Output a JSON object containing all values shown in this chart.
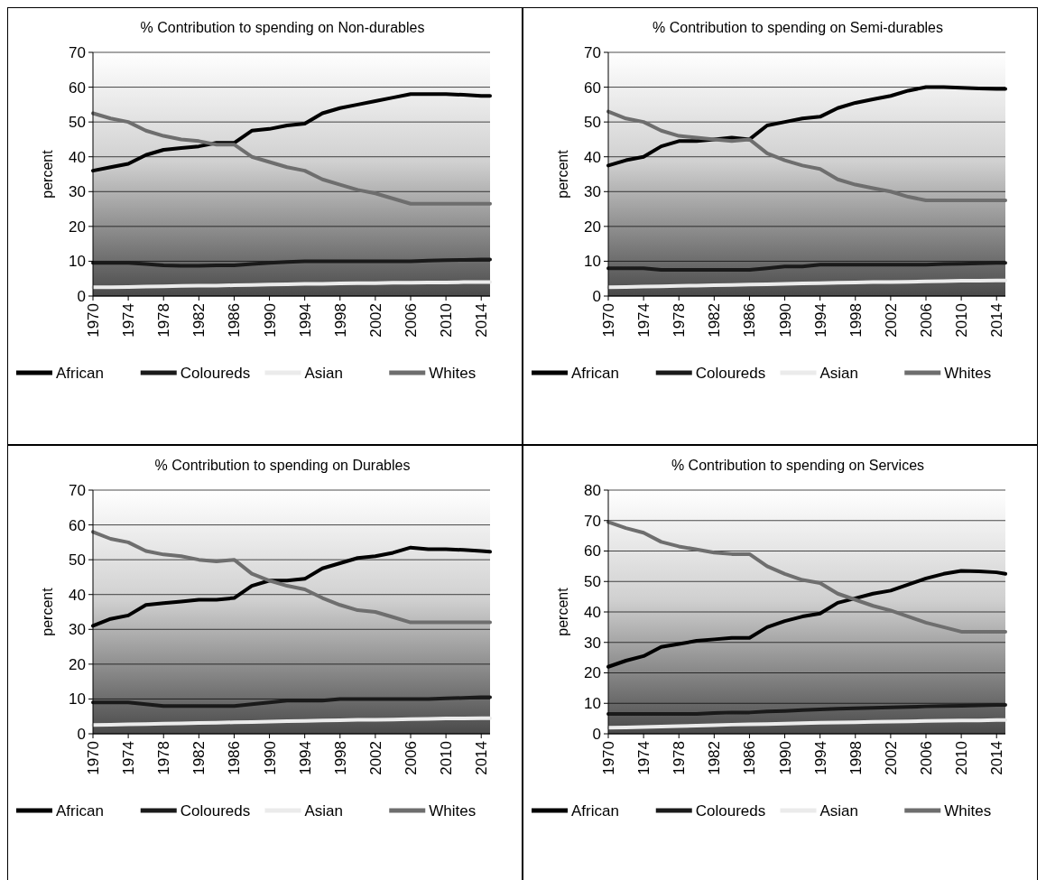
{
  "chart_data": [
    {
      "type": "line",
      "title": "% Contribution to spending on Non-durables",
      "ylabel": "percent",
      "x": [
        1970,
        1972,
        1974,
        1976,
        1978,
        1980,
        1982,
        1984,
        1986,
        1988,
        1990,
        1992,
        1994,
        1996,
        1998,
        2000,
        2002,
        2004,
        2006,
        2008,
        2010,
        2012,
        2014,
        2015
      ],
      "xlim": [
        1970,
        2015
      ],
      "xticks": [
        1970,
        1974,
        1978,
        1982,
        1986,
        1990,
        1994,
        1998,
        2002,
        2006,
        2010,
        2014
      ],
      "ylim": [
        0,
        70
      ],
      "yticks": [
        0,
        10,
        20,
        30,
        40,
        50,
        60,
        70
      ],
      "grid": "y",
      "legend": "bottom",
      "series": [
        {
          "name": "African",
          "color": "#000000",
          "values": [
            36,
            37,
            38,
            40.5,
            42,
            42.5,
            43,
            44,
            44,
            47.5,
            48,
            49,
            49.5,
            52.5,
            54,
            55,
            56,
            57,
            58,
            58,
            58,
            57.8,
            57.5,
            57.5
          ]
        },
        {
          "name": "Coloureds",
          "color": "#1a1a1a",
          "values": [
            9.5,
            9.5,
            9.5,
            9.2,
            8.8,
            8.7,
            8.7,
            8.8,
            8.8,
            9.2,
            9.5,
            9.8,
            10,
            10,
            10,
            10,
            10,
            10,
            10,
            10.2,
            10.3,
            10.4,
            10.5,
            10.5
          ]
        },
        {
          "name": "Asian",
          "color": "#ebebeb",
          "values": [
            2.5,
            2.5,
            2.6,
            2.7,
            2.8,
            2.9,
            3,
            3,
            3.1,
            3.2,
            3.3,
            3.4,
            3.5,
            3.5,
            3.6,
            3.7,
            3.7,
            3.8,
            3.8,
            3.9,
            3.9,
            4,
            4,
            4
          ]
        },
        {
          "name": "Whites",
          "color": "#6e6e6e",
          "values": [
            52.5,
            51,
            50,
            47.5,
            46,
            45,
            44.5,
            43.5,
            43.5,
            40,
            38.5,
            37,
            36,
            33.5,
            32,
            30.5,
            29.5,
            28,
            26.5,
            26.5,
            26.5,
            26.5,
            26.5,
            26.5
          ]
        }
      ]
    },
    {
      "type": "line",
      "title": "% Contribution to spending on Semi-durables",
      "ylabel": "percent",
      "x": [
        1970,
        1972,
        1974,
        1976,
        1978,
        1980,
        1982,
        1984,
        1986,
        1988,
        1990,
        1992,
        1994,
        1996,
        1998,
        2000,
        2002,
        2004,
        2006,
        2008,
        2010,
        2012,
        2014,
        2015
      ],
      "xlim": [
        1970,
        2015
      ],
      "xticks": [
        1970,
        1974,
        1978,
        1982,
        1986,
        1990,
        1994,
        1998,
        2002,
        2006,
        2010,
        2014
      ],
      "ylim": [
        0,
        70
      ],
      "yticks": [
        0,
        10,
        20,
        30,
        40,
        50,
        60,
        70
      ],
      "grid": "y",
      "legend": "bottom",
      "series": [
        {
          "name": "African",
          "color": "#000000",
          "values": [
            37.5,
            39,
            40,
            43,
            44.5,
            44.5,
            45,
            45.5,
            45,
            49,
            50,
            51,
            51.5,
            54,
            55.5,
            56.5,
            57.5,
            59,
            60,
            60,
            59.8,
            59.6,
            59.5,
            59.5
          ]
        },
        {
          "name": "Coloureds",
          "color": "#1a1a1a",
          "values": [
            8,
            8,
            8,
            7.5,
            7.5,
            7.5,
            7.5,
            7.5,
            7.5,
            8,
            8.5,
            8.5,
            9,
            9,
            9,
            9,
            9,
            9,
            9,
            9.2,
            9.3,
            9.4,
            9.5,
            9.5
          ]
        },
        {
          "name": "Asian",
          "color": "#ebebeb",
          "values": [
            2.5,
            2.6,
            2.7,
            2.8,
            2.9,
            3,
            3.1,
            3.2,
            3.3,
            3.4,
            3.5,
            3.6,
            3.7,
            3.8,
            3.9,
            4,
            4,
            4.1,
            4.2,
            4.3,
            4.4,
            4.4,
            4.5,
            4.5
          ]
        },
        {
          "name": "Whites",
          "color": "#6e6e6e",
          "values": [
            53,
            51,
            50,
            47.5,
            46,
            45.5,
            45,
            44.5,
            45,
            41,
            39,
            37.5,
            36.5,
            33.5,
            32,
            31,
            30,
            28.5,
            27.5,
            27.5,
            27.5,
            27.5,
            27.5,
            27.5
          ]
        }
      ]
    },
    {
      "type": "line",
      "title": "% Contribution to spending on Durables",
      "ylabel": "percent",
      "x": [
        1970,
        1972,
        1974,
        1976,
        1978,
        1980,
        1982,
        1984,
        1986,
        1988,
        1990,
        1992,
        1994,
        1996,
        1998,
        2000,
        2002,
        2004,
        2006,
        2008,
        2010,
        2012,
        2014,
        2015
      ],
      "xlim": [
        1970,
        2015
      ],
      "xticks": [
        1970,
        1974,
        1978,
        1982,
        1986,
        1990,
        1994,
        1998,
        2002,
        2006,
        2010,
        2014
      ],
      "ylim": [
        0,
        70
      ],
      "yticks": [
        0,
        10,
        20,
        30,
        40,
        50,
        60,
        70
      ],
      "grid": "y",
      "legend": "bottom",
      "series": [
        {
          "name": "African",
          "color": "#000000",
          "values": [
            31,
            33,
            34,
            37,
            37.5,
            38,
            38.5,
            38.5,
            39,
            42.5,
            44,
            44,
            44.5,
            47.5,
            49,
            50.5,
            51,
            52,
            53.5,
            53,
            53,
            52.8,
            52.5,
            52.3
          ]
        },
        {
          "name": "Coloureds",
          "color": "#1a1a1a",
          "values": [
            9,
            9,
            9,
            8.5,
            8,
            8,
            8,
            8,
            8,
            8.5,
            9,
            9.5,
            9.5,
            9.5,
            10,
            10,
            10,
            10,
            10,
            10,
            10.2,
            10.3,
            10.5,
            10.5
          ]
        },
        {
          "name": "Asian",
          "color": "#ebebeb",
          "values": [
            2.5,
            2.6,
            2.7,
            2.8,
            2.9,
            3,
            3.1,
            3.2,
            3.3,
            3.4,
            3.5,
            3.6,
            3.7,
            3.8,
            3.9,
            4,
            4,
            4.1,
            4.2,
            4.3,
            4.4,
            4.4,
            4.5,
            4.5
          ]
        },
        {
          "name": "Whites",
          "color": "#6e6e6e",
          "values": [
            58,
            56,
            55,
            52.5,
            51.5,
            51,
            50,
            49.5,
            50,
            46,
            44,
            42.5,
            41.5,
            39,
            37,
            35.5,
            35,
            33.5,
            32,
            32,
            32,
            32,
            32,
            32
          ]
        }
      ]
    },
    {
      "type": "line",
      "title": "% Contribution to spending on Services",
      "ylabel": "percent",
      "x": [
        1970,
        1972,
        1974,
        1976,
        1978,
        1980,
        1982,
        1984,
        1986,
        1988,
        1990,
        1992,
        1994,
        1996,
        1998,
        2000,
        2002,
        2004,
        2006,
        2008,
        2010,
        2012,
        2014,
        2015
      ],
      "xlim": [
        1970,
        2015
      ],
      "xticks": [
        1970,
        1974,
        1978,
        1982,
        1986,
        1990,
        1994,
        1998,
        2002,
        2006,
        2010,
        2014
      ],
      "ylim": [
        0,
        80
      ],
      "yticks": [
        0,
        10,
        20,
        30,
        40,
        50,
        60,
        70,
        80
      ],
      "grid": "y",
      "legend": "bottom",
      "series": [
        {
          "name": "African",
          "color": "#000000",
          "values": [
            22,
            24,
            25.5,
            28.5,
            29.5,
            30.5,
            31,
            31.5,
            31.5,
            35,
            37,
            38.5,
            39.5,
            43,
            44.5,
            46,
            47,
            49,
            51,
            52.5,
            53.5,
            53.3,
            53,
            52.5
          ]
        },
        {
          "name": "Coloureds",
          "color": "#1a1a1a",
          "values": [
            6.5,
            6.5,
            6.5,
            6.5,
            6.5,
            6.5,
            6.8,
            7,
            7,
            7.3,
            7.5,
            7.8,
            8,
            8.2,
            8.4,
            8.5,
            8.7,
            8.8,
            9,
            9.1,
            9.2,
            9.3,
            9.5,
            9.5
          ]
        },
        {
          "name": "Asian",
          "color": "#ebebeb",
          "values": [
            2,
            2.1,
            2.2,
            2.4,
            2.5,
            2.7,
            2.8,
            3,
            3.1,
            3.2,
            3.3,
            3.5,
            3.6,
            3.7,
            3.8,
            3.9,
            4,
            4.1,
            4.2,
            4.3,
            4.4,
            4.4,
            4.5,
            4.5
          ]
        },
        {
          "name": "Whites",
          "color": "#6e6e6e",
          "values": [
            69.5,
            67.5,
            66,
            63,
            61.5,
            60.5,
            59.5,
            59,
            59,
            55,
            52.5,
            50.5,
            49.5,
            46,
            44,
            42,
            40.5,
            38.5,
            36.5,
            35,
            33.5,
            33.5,
            33.5,
            33.5
          ]
        }
      ]
    }
  ]
}
